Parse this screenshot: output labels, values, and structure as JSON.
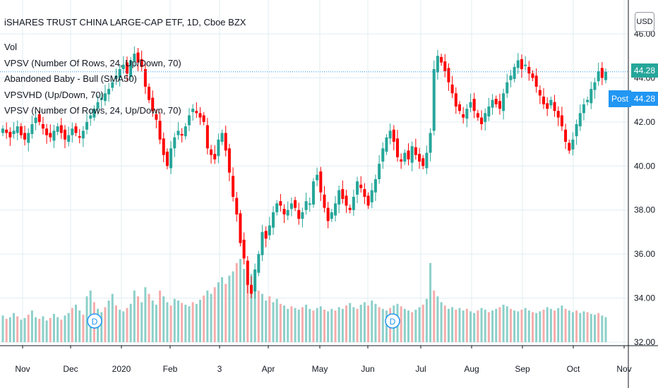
{
  "header": {
    "title": "iSHARES TRUST CHINA LARGE-CAP ETF, 1D, Cboe BZX",
    "currency_button": "USD"
  },
  "legend": [
    "Vol",
    "VPSV (Number Of Rows, 24, Up/Down, 70)",
    "Abandoned Baby - Bull (SMA50)",
    "VPSVHD (Up/Down, 70)",
    "VPSV (Number Of Rows, 24, Up/Down, 70)"
  ],
  "price_labels": {
    "last": "44.28",
    "post_label": "Post",
    "post_value": "44.28",
    "top_partial": "46.00"
  },
  "colors": {
    "up": "#26a69a",
    "down": "#ef5350",
    "down_wick": "#ff0000",
    "grid": "#e1ecf2",
    "last_line": "#2196f3",
    "post_bg": "#2196f3",
    "last_tag_bg": "#26a69a"
  },
  "chart_data": {
    "type": "candlestick",
    "y_axis_ticks": [
      "46.00",
      "44.00",
      "42.00",
      "40.00",
      "38.00",
      "36.00",
      "34.00",
      "32.00"
    ],
    "y_range": [
      32,
      47.2
    ],
    "x_axis_labels": [
      "Nov",
      "Dec",
      "2020",
      "Feb",
      "3",
      "Apr",
      "May",
      "Jun",
      "Jul",
      "Aug",
      "Sep",
      "Oct",
      "Nov"
    ],
    "last_price": 44.28,
    "dividend_markers": [
      "D",
      "D"
    ],
    "close_series": [
      41.7,
      41.5,
      41.3,
      41.6,
      41.8,
      41.4,
      41.2,
      41.5,
      41.9,
      42.2,
      42.0,
      41.7,
      41.4,
      41.3,
      41.6,
      41.8,
      41.5,
      41.2,
      41.4,
      41.7,
      41.5,
      41.3,
      41.6,
      42.0,
      42.3,
      42.6,
      42.9,
      43.1,
      43.3,
      43.5,
      43.8,
      44.1,
      44.4,
      44.6,
      44.2,
      44.8,
      45.1,
      44.7,
      44.5,
      43.6,
      43.0,
      42.5,
      42.1,
      41.2,
      40.5,
      40.0,
      40.8,
      41.3,
      41.6,
      41.4,
      41.8,
      42.3,
      42.6,
      42.4,
      42.2,
      42.0,
      40.8,
      40.5,
      40.3,
      41.2,
      41.5,
      40.7,
      39.7,
      38.6,
      37.8,
      36.5,
      35.8,
      34.6,
      34.2,
      35.3,
      36.0,
      37.0,
      36.7,
      37.3,
      37.9,
      38.3,
      38.2,
      37.8,
      38.0,
      38.3,
      38.1,
      37.6,
      37.9,
      38.4,
      38.3,
      39.3,
      39.6,
      38.8,
      38.1,
      37.5,
      37.9,
      38.3,
      38.9,
      38.5,
      38.2,
      38.0,
      38.6,
      39.3,
      39.0,
      38.6,
      38.2,
      38.9,
      39.4,
      40.1,
      40.8,
      41.3,
      41.6,
      41.1,
      40.4,
      40.2,
      40.6,
      40.3,
      40.9,
      40.5,
      40.2,
      40.0,
      40.6,
      41.5,
      44.4,
      45.0,
      44.7,
      44.3,
      43.8,
      43.3,
      42.7,
      42.5,
      42.2,
      42.6,
      42.9,
      42.5,
      42.2,
      41.9,
      42.4,
      42.7,
      43.0,
      42.8,
      42.6,
      43.3,
      43.8,
      44.1,
      44.5,
      44.8,
      44.4,
      44.6,
      44.2,
      44.0,
      43.6,
      43.2,
      42.8,
      42.6,
      43.0,
      42.5,
      42.2,
      41.8,
      41.1,
      40.7,
      41.2,
      41.9,
      42.4,
      42.8,
      43.0,
      43.5,
      43.8,
      44.3,
      44.0,
      44.28
    ]
  },
  "volume_data": [
    0.32,
    0.28,
    0.3,
    0.35,
    0.31,
    0.27,
    0.29,
    0.33,
    0.38,
    0.3,
    0.28,
    0.31,
    0.26,
    0.29,
    0.34,
    0.3,
    0.27,
    0.32,
    0.35,
    0.41,
    0.45,
    0.38,
    0.33,
    0.55,
    0.62,
    0.48,
    0.4,
    0.36,
    0.42,
    0.5,
    0.58,
    0.44,
    0.39,
    0.37,
    0.41,
    0.46,
    0.62,
    0.55,
    0.48,
    0.66,
    0.58,
    0.5,
    0.45,
    0.62,
    0.55,
    0.48,
    0.44,
    0.52,
    0.5,
    0.47,
    0.45,
    0.43,
    0.48,
    0.46,
    0.51,
    0.56,
    0.62,
    0.58,
    0.66,
    0.72,
    0.78,
    0.7,
    0.8,
    0.85,
    0.95,
    1.0,
    0.88,
    0.76,
    0.82,
    0.7,
    0.62,
    0.58,
    0.5,
    0.55,
    0.48,
    0.52,
    0.46,
    0.44,
    0.4,
    0.43,
    0.41,
    0.39,
    0.42,
    0.45,
    0.4,
    0.38,
    0.41,
    0.43,
    0.39,
    0.37,
    0.4,
    0.38,
    0.42,
    0.4,
    0.44,
    0.47,
    0.42,
    0.4,
    0.45,
    0.48,
    0.44,
    0.5,
    0.46,
    0.42,
    0.4,
    0.38,
    0.41,
    0.44,
    0.46,
    0.43,
    0.4,
    0.38,
    0.36,
    0.39,
    0.42,
    0.45,
    0.52,
    0.95,
    0.62,
    0.55,
    0.48,
    0.44,
    0.4,
    0.42,
    0.39,
    0.41,
    0.38,
    0.4,
    0.37,
    0.35,
    0.38,
    0.41,
    0.39,
    0.36,
    0.38,
    0.4,
    0.42,
    0.45,
    0.43,
    0.4,
    0.38,
    0.37,
    0.39,
    0.41,
    0.38,
    0.36,
    0.35,
    0.37,
    0.39,
    0.42,
    0.4,
    0.38,
    0.41,
    0.44,
    0.4,
    0.38,
    0.36,
    0.38,
    0.35,
    0.37,
    0.36,
    0.34,
    0.33,
    0.35,
    0.32,
    0.3
  ]
}
